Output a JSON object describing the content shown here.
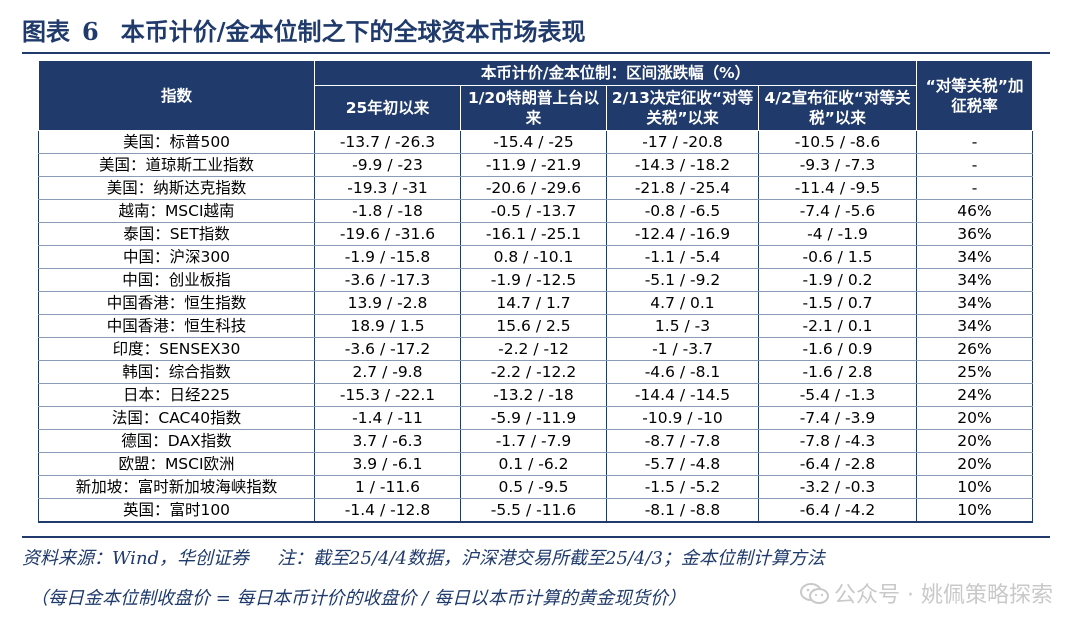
{
  "title": {
    "prefix": "图表",
    "number": "6",
    "text": "本币计价/金本位制之下的全球资本市场表现"
  },
  "table": {
    "index_header": "指数",
    "group_header": "本币计价/金本位制：区间涨跌幅（%）",
    "tariff_header": "“对等关税”加征税率",
    "period_headers": [
      "25年初以来",
      "1/20特朗普上台以来",
      "2/13决定征收“对等关税”以来",
      "4/2宣布征收“对等关税”以来"
    ],
    "rows": [
      {
        "name": "美国：标普500",
        "v": [
          "-13.7 / -26.3",
          "-15.4 / -25",
          "-17 / -20.8",
          "-10.5 / -8.6"
        ],
        "tariff": "-"
      },
      {
        "name": "美国：道琼斯工业指数",
        "v": [
          "-9.9 / -23",
          "-11.9 / -21.9",
          "-14.3 / -18.2",
          "-9.3 / -7.3"
        ],
        "tariff": "-"
      },
      {
        "name": "美国：纳斯达克指数",
        "v": [
          "-19.3 / -31",
          "-20.6 / -29.6",
          "-21.8 / -25.4",
          "-11.4 / -9.5"
        ],
        "tariff": "-"
      },
      {
        "name": "越南：MSCI越南",
        "v": [
          "-1.8 / -18",
          "-0.5 / -13.7",
          "-0.8 / -6.5",
          "-7.4 / -5.6"
        ],
        "tariff": "46%"
      },
      {
        "name": "泰国：SET指数",
        "v": [
          "-19.6 / -31.6",
          "-16.1 / -25.1",
          "-12.4 / -16.9",
          "-4 / -1.9"
        ],
        "tariff": "36%"
      },
      {
        "name": "中国：沪深300",
        "v": [
          "-1.9 / -15.8",
          "0.8 / -10.1",
          "-1.1 / -5.4",
          "-0.6 / 1.5"
        ],
        "tariff": "34%"
      },
      {
        "name": "中国：创业板指",
        "v": [
          "-3.6 / -17.3",
          "-1.9 / -12.5",
          "-5.1 / -9.2",
          "-1.9 / 0.2"
        ],
        "tariff": "34%"
      },
      {
        "name": "中国香港：恒生指数",
        "v": [
          "13.9 / -2.8",
          "14.7 / 1.7",
          "4.7 / 0.1",
          "-1.5 / 0.7"
        ],
        "tariff": "34%"
      },
      {
        "name": "中国香港：恒生科技",
        "v": [
          "18.9 / 1.5",
          "15.6 / 2.5",
          "1.5 / -3",
          "-2.1 / 0.1"
        ],
        "tariff": "34%"
      },
      {
        "name": "印度：SENSEX30",
        "v": [
          "-3.6 / -17.2",
          "-2.2 / -12",
          "-1 / -3.7",
          "-1.6 / 0.9"
        ],
        "tariff": "26%"
      },
      {
        "name": "韩国：综合指数",
        "v": [
          "2.7 / -9.8",
          "-2.2 / -12.2",
          "-4.6 / -8.1",
          "-1.6 / 2.8"
        ],
        "tariff": "25%"
      },
      {
        "name": "日本：日经225",
        "v": [
          "-15.3 / -22.1",
          "-13.2 / -18",
          "-14.4 / -14.5",
          "-5.4 / -1.3"
        ],
        "tariff": "24%"
      },
      {
        "name": "法国：CAC40指数",
        "v": [
          "-1.4 / -11",
          "-5.9 / -11.9",
          "-10.9 / -10",
          "-7.4 / -3.9"
        ],
        "tariff": "20%"
      },
      {
        "name": "德国：DAX指数",
        "v": [
          "3.7 / -6.3",
          "-1.7 / -7.9",
          "-8.7 / -7.8",
          "-7.8 / -4.3"
        ],
        "tariff": "20%"
      },
      {
        "name": "欧盟：MSCI欧洲",
        "v": [
          "3.9 / -6.1",
          "0.1 / -6.2",
          "-5.7 / -4.8",
          "-6.4 / -2.8"
        ],
        "tariff": "20%"
      },
      {
        "name": "新加坡：富时新加坡海峡指数",
        "v": [
          "1 / -11.6",
          "0.5 / -9.5",
          "-1.5 / -5.2",
          "-3.2 / -0.3"
        ],
        "tariff": "10%"
      },
      {
        "name": "英国：富时100",
        "v": [
          "-1.4 / -12.8",
          "-5.5 / -11.6",
          "-8.1 / -8.8",
          "-6.4 / -4.2"
        ],
        "tariff": "10%"
      }
    ]
  },
  "footer": {
    "source": "资料来源：Wind，华创证券",
    "note": "注：截至25/4/4数据，沪深港交易所截至25/4/3；金本位制计算方法",
    "formula": "（每日金本位制收盘价 = 每日本币计价的收盘价 / 每日以本币计算的黄金现货价）"
  },
  "watermark": {
    "icon": "wechat-icon",
    "text": "公众号 · 姚佩策略探索"
  },
  "colors": {
    "header_bg": "#1f3a6b",
    "header_text": "#ffffff",
    "accent": "#1f3a6b"
  }
}
